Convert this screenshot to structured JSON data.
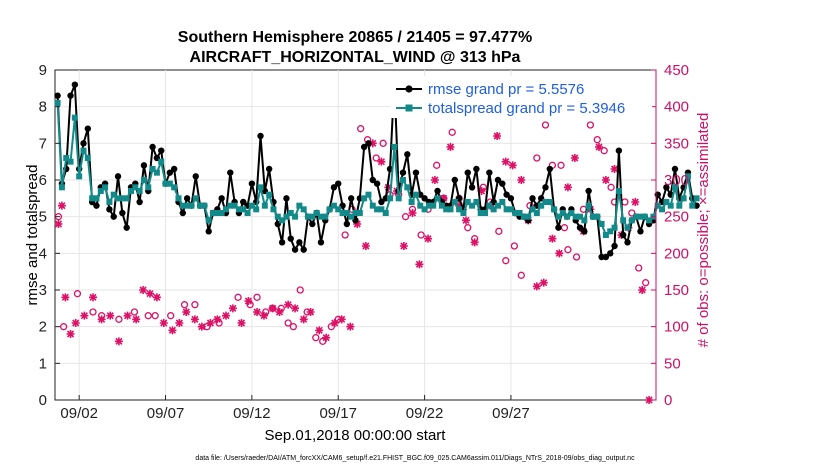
{
  "chart_data": {
    "type": "line",
    "title": "Southern Hemisphere 20865 / 21405 = 97.477%",
    "subtitle": "AIRCRAFT_HORIZONTAL_WIND @ 313 hPa",
    "xlabel": "Sep.01,2018 00:00:00 start",
    "ylabel": "rmse and totalspread",
    "ylabel_right": "# of obs: o=possible; ×=assimilated",
    "xlim": [
      0.6,
      35.4
    ],
    "ylim": [
      0,
      9
    ],
    "ylim_right": [
      0,
      450
    ],
    "x_ticks": [
      2,
      7,
      12,
      17,
      22,
      27
    ],
    "x_tick_labels": [
      "09/02",
      "09/07",
      "09/12",
      "09/17",
      "09/22",
      "09/27"
    ],
    "y_ticks": [
      0,
      1,
      2,
      3,
      4,
      5,
      6,
      7,
      8,
      9
    ],
    "y_ticks_right": [
      0,
      50,
      100,
      150,
      200,
      250,
      300,
      350,
      400,
      450
    ],
    "grid": true,
    "legend_position": "top-right",
    "footnote": "data file: /Users/raeder/DAI/ATM_forcXX/CAM6_setup/f.e21.FHIST_BGC.f09_025.CAM6assim.011/Diags_NTrS_2018-09/obs_diag_output.nc",
    "x_step": 0.25,
    "series": [
      {
        "name": "rmse grand pr = 5.5576",
        "axis": "left",
        "color": "#000000",
        "marker": "dot",
        "start": 0.75,
        "values": [
          8.3,
          5.9,
          6.3,
          8.3,
          8.6,
          6.3,
          7.0,
          7.4,
          5.4,
          5.3,
          5.8,
          5.9,
          5.2,
          5.0,
          6.1,
          5.1,
          4.7,
          5.8,
          5.9,
          5.4,
          6.4,
          5.7,
          6.9,
          6.6,
          6.8,
          5.9,
          6.2,
          6.3,
          5.4,
          5.1,
          5.5,
          5.3,
          6.1,
          5.3,
          5.3,
          4.6,
          5.1,
          5.2,
          5.5,
          5.1,
          6.2,
          5.4,
          5.1,
          5.4,
          5.3,
          5.9,
          5.4,
          7.2,
          5.7,
          6.3,
          5.4,
          4.8,
          4.3,
          5.5,
          4.4,
          4.1,
          4.3,
          4.1,
          5.0,
          4.8,
          5.1,
          4.3,
          4.9,
          5.2,
          5.8,
          5.9,
          5.3,
          4.8,
          5.5,
          4.9,
          5.5,
          6.9,
          7.0,
          6.0,
          5.9,
          5.4,
          5.5,
          6.3,
          8.7,
          5.7,
          6.2,
          6.7,
          5.6,
          6.2,
          5.6,
          5.5,
          5.4,
          5.4,
          5.7,
          5.4,
          5.3,
          5.3,
          6.0,
          5.5,
          5.2,
          6.2,
          5.8,
          6.3,
          5.2,
          5.2,
          6.2,
          5.4,
          6.0,
          5.9,
          5.6,
          5.5,
          5.1,
          5.0,
          5.0,
          4.9,
          5.5,
          5.3,
          5.5,
          5.8,
          6.3,
          5.2,
          4.7,
          5.2,
          5.0,
          5.2,
          4.9,
          4.7,
          4.6,
          5.7,
          5.0,
          5.0,
          3.9,
          3.9,
          4.0,
          4.2,
          6.8,
          4.5,
          4.3,
          4.9,
          5.0,
          4.6,
          5.0,
          4.8,
          4.9,
          5.6,
          5.4,
          5.8,
          5.6,
          6.3,
          5.5,
          5.8,
          6.2,
          5.5,
          5.3
        ]
      },
      {
        "name": "totalspread grand pr = 5.3946",
        "axis": "left",
        "color": "#138a8a",
        "marker": "square",
        "start": 0.75,
        "values": [
          8.1,
          5.8,
          6.6,
          6.5,
          7.7,
          6.1,
          6.8,
          6.6,
          5.5,
          5.5,
          5.7,
          5.8,
          5.4,
          5.6,
          5.5,
          5.5,
          5.5,
          5.7,
          5.8,
          5.7,
          6.0,
          5.8,
          6.3,
          6.2,
          6.5,
          5.9,
          5.9,
          5.8,
          5.5,
          5.3,
          5.3,
          5.3,
          5.5,
          5.3,
          5.3,
          4.9,
          5.1,
          5.1,
          5.1,
          5.2,
          5.3,
          5.3,
          5.2,
          5.2,
          5.1,
          5.3,
          5.2,
          5.8,
          5.3,
          5.6,
          5.2,
          5.0,
          4.9,
          5.0,
          5.1,
          5.0,
          5.3,
          5.2,
          5.0,
          5.0,
          5.1,
          5.0,
          5.0,
          5.2,
          5.3,
          5.2,
          5.1,
          5.1,
          5.0,
          5.1,
          5.1,
          5.5,
          5.6,
          5.3,
          5.2,
          5.2,
          5.1,
          5.5,
          6.9,
          5.5,
          6.0,
          5.8,
          5.4,
          5.6,
          5.3,
          5.2,
          5.3,
          5.3,
          5.5,
          5.3,
          5.2,
          5.2,
          5.4,
          5.2,
          5.1,
          5.4,
          5.3,
          5.4,
          5.1,
          5.1,
          5.3,
          5.2,
          5.3,
          5.4,
          5.2,
          5.2,
          5.1,
          5.1,
          5.0,
          5.0,
          5.2,
          5.1,
          5.3,
          5.4,
          5.4,
          5.2,
          5.0,
          5.1,
          5.0,
          5.1,
          5.0,
          5.0,
          4.9,
          5.3,
          5.0,
          5.0,
          4.8,
          4.5,
          4.6,
          4.7,
          5.7,
          4.9,
          4.7,
          4.9,
          5.0,
          5.0,
          5.0,
          4.9,
          5.0,
          5.3,
          5.2,
          5.4,
          5.3,
          5.8,
          5.3,
          5.5,
          6.1,
          5.3,
          5.5
        ]
      },
      {
        "name": "possible",
        "axis": "right",
        "color": "#dd1166",
        "marker": "circle",
        "x": [
          0.8,
          1.1,
          1.9,
          2.8,
          3.3,
          4.3,
          5.2,
          6.0,
          6.4,
          7.3,
          8.1,
          8.7,
          9.4,
          10.1,
          11.2,
          11.9,
          12.3,
          12.8,
          13.2,
          13.7,
          14.1,
          14.4,
          14.8,
          15.2,
          15.7,
          16.1,
          16.6,
          17.0,
          17.4,
          17.8,
          18.3,
          18.7,
          19.2,
          19.6,
          20.0,
          20.5,
          20.9,
          21.3,
          21.8,
          22.2,
          22.7,
          23.1,
          23.6,
          24.0,
          24.5,
          24.9,
          25.4,
          25.8,
          26.3,
          26.7,
          27.2,
          27.6,
          28.1,
          28.5,
          29.0,
          29.4,
          29.9,
          30.1,
          30.3,
          30.8,
          31.2,
          31.6,
          32.0,
          32.4,
          32.8,
          33.0,
          33.6,
          34.0,
          34.4,
          34.8
        ],
        "values": [
          250,
          100,
          145,
          120,
          115,
          110,
          120,
          115,
          115,
          115,
          130,
          130,
          100,
          105,
          140,
          130,
          140,
          120,
          125,
          125,
          105,
          100,
          150,
          120,
          85,
          80,
          100,
          110,
          225,
          260,
          370,
          355,
          330,
          350,
          280,
          280,
          250,
          260,
          225,
          260,
          320,
          275,
          365,
          275,
          235,
          220,
          290,
          270,
          230,
          190,
          210,
          170,
          265,
          330,
          375,
          320,
          320,
          235,
          205,
          195,
          260,
          375,
          355,
          340,
          290,
          270,
          270,
          255,
          180,
          160
        ]
      },
      {
        "name": "assimilated",
        "axis": "right",
        "color": "#dd1166",
        "marker": "asterisk",
        "x": [
          0.8,
          1.0,
          1.2,
          1.5,
          1.8,
          2.3,
          2.8,
          3.3,
          3.8,
          4.3,
          4.8,
          5.3,
          5.7,
          6.1,
          6.5,
          6.9,
          7.4,
          7.8,
          8.2,
          8.7,
          9.1,
          9.6,
          10.0,
          10.5,
          10.9,
          11.4,
          11.8,
          12.3,
          12.7,
          13.2,
          13.6,
          14.1,
          14.5,
          15.0,
          15.4,
          15.9,
          16.3,
          16.8,
          17.2,
          17.7,
          18.1,
          18.6,
          19.0,
          19.5,
          19.9,
          20.4,
          20.8,
          21.3,
          21.7,
          22.2,
          22.6,
          23.1,
          23.5,
          24.0,
          24.4,
          24.9,
          25.3,
          25.8,
          26.2,
          26.7,
          27.1,
          27.6,
          28.0,
          28.5,
          28.9,
          29.4,
          29.8,
          30.3,
          30.7,
          31.2,
          31.6,
          32.1,
          32.5,
          33.0,
          33.4,
          33.8,
          34.2,
          34.6,
          35.0
        ],
        "values": [
          240,
          265,
          140,
          90,
          105,
          115,
          140,
          110,
          115,
          80,
          115,
          110,
          150,
          145,
          140,
          105,
          95,
          105,
          120,
          110,
          100,
          105,
          110,
          115,
          125,
          105,
          135,
          120,
          115,
          125,
          120,
          130,
          125,
          110,
          120,
          95,
          85,
          105,
          110,
          100,
          240,
          210,
          350,
          325,
          290,
          285,
          210,
          255,
          185,
          220,
          300,
          275,
          345,
          265,
          245,
          215,
          285,
          265,
          360,
          325,
          320,
          300,
          245,
          155,
          160,
          220,
          200,
          290,
          330,
          230,
          260,
          345,
          300,
          315,
          225,
          235,
          270,
          150,
          0
        ]
      }
    ]
  }
}
